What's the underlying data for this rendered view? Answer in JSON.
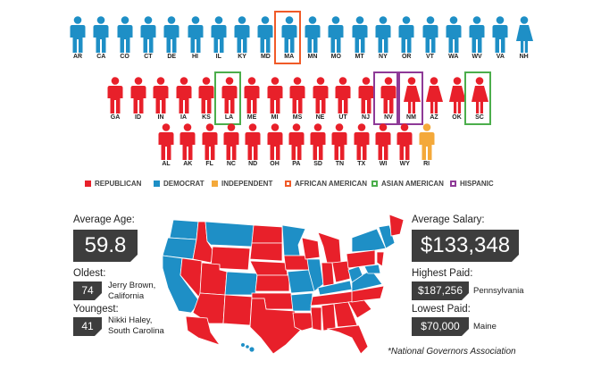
{
  "colors": {
    "republican": "#e8202a",
    "democrat": "#1e8fc6",
    "independent": "#f4a93a",
    "african_american": "#f05a28",
    "asian_american": "#4cae4c",
    "hispanic": "#8e3a97",
    "dark_box": "#3d3d3d"
  },
  "governor_rows": [
    [
      {
        "state": "AR",
        "party": "democrat",
        "gender": "male"
      },
      {
        "state": "CA",
        "party": "democrat",
        "gender": "male"
      },
      {
        "state": "CO",
        "party": "democrat",
        "gender": "male"
      },
      {
        "state": "CT",
        "party": "democrat",
        "gender": "male"
      },
      {
        "state": "DE",
        "party": "democrat",
        "gender": "male"
      },
      {
        "state": "HI",
        "party": "democrat",
        "gender": "male"
      },
      {
        "state": "IL",
        "party": "democrat",
        "gender": "male"
      },
      {
        "state": "KY",
        "party": "democrat",
        "gender": "male"
      },
      {
        "state": "MD",
        "party": "democrat",
        "gender": "male"
      },
      {
        "state": "MA",
        "party": "democrat",
        "gender": "male",
        "highlight": "african_american"
      },
      {
        "state": "MN",
        "party": "democrat",
        "gender": "male"
      },
      {
        "state": "MO",
        "party": "democrat",
        "gender": "male"
      },
      {
        "state": "MT",
        "party": "democrat",
        "gender": "male"
      },
      {
        "state": "NY",
        "party": "democrat",
        "gender": "male"
      },
      {
        "state": "OR",
        "party": "democrat",
        "gender": "male"
      },
      {
        "state": "VT",
        "party": "democrat",
        "gender": "male"
      },
      {
        "state": "WA",
        "party": "democrat",
        "gender": "male"
      },
      {
        "state": "WV",
        "party": "democrat",
        "gender": "male"
      },
      {
        "state": "VA",
        "party": "democrat",
        "gender": "male"
      },
      {
        "state": "NH",
        "party": "democrat",
        "gender": "female"
      }
    ],
    [
      {
        "state": "GA",
        "party": "republican",
        "gender": "male"
      },
      {
        "state": "ID",
        "party": "republican",
        "gender": "male"
      },
      {
        "state": "IN",
        "party": "republican",
        "gender": "male"
      },
      {
        "state": "IA",
        "party": "republican",
        "gender": "male"
      },
      {
        "state": "KS",
        "party": "republican",
        "gender": "male"
      },
      {
        "state": "LA",
        "party": "republican",
        "gender": "male",
        "highlight": "asian_american"
      },
      {
        "state": "ME",
        "party": "republican",
        "gender": "male"
      },
      {
        "state": "MI",
        "party": "republican",
        "gender": "male"
      },
      {
        "state": "MS",
        "party": "republican",
        "gender": "male"
      },
      {
        "state": "NE",
        "party": "republican",
        "gender": "male"
      },
      {
        "state": "UT",
        "party": "republican",
        "gender": "male"
      },
      {
        "state": "NJ",
        "party": "republican",
        "gender": "male"
      },
      {
        "state": "NV",
        "party": "republican",
        "gender": "male",
        "highlight": "hispanic"
      },
      {
        "state": "NM",
        "party": "republican",
        "gender": "female",
        "highlight": "hispanic"
      },
      {
        "state": "AZ",
        "party": "republican",
        "gender": "female"
      },
      {
        "state": "OK",
        "party": "republican",
        "gender": "female"
      },
      {
        "state": "SC",
        "party": "republican",
        "gender": "female",
        "highlight": "asian_american"
      }
    ],
    [
      {
        "state": "AL",
        "party": "republican",
        "gender": "male"
      },
      {
        "state": "AK",
        "party": "republican",
        "gender": "male"
      },
      {
        "state": "FL",
        "party": "republican",
        "gender": "male"
      },
      {
        "state": "NC",
        "party": "republican",
        "gender": "male"
      },
      {
        "state": "ND",
        "party": "republican",
        "gender": "male"
      },
      {
        "state": "OH",
        "party": "republican",
        "gender": "male"
      },
      {
        "state": "PA",
        "party": "republican",
        "gender": "male"
      },
      {
        "state": "SD",
        "party": "republican",
        "gender": "male"
      },
      {
        "state": "TN",
        "party": "republican",
        "gender": "male"
      },
      {
        "state": "TX",
        "party": "republican",
        "gender": "male"
      },
      {
        "state": "WI",
        "party": "republican",
        "gender": "male"
      },
      {
        "state": "WY",
        "party": "republican",
        "gender": "male"
      },
      {
        "state": "RI",
        "party": "independent",
        "gender": "male"
      }
    ]
  ],
  "legend": [
    {
      "label": "REPUBLICAN",
      "key": "republican",
      "style": "fill"
    },
    {
      "label": "DEMOCRAT",
      "key": "democrat",
      "style": "fill"
    },
    {
      "label": "INDEPENDENT",
      "key": "independent",
      "style": "fill"
    },
    {
      "label": "AFRICAN AMERICAN",
      "key": "african_american",
      "style": "outline"
    },
    {
      "label": "ASIAN AMERICAN",
      "key": "asian_american",
      "style": "outline"
    },
    {
      "label": "HISPANIC",
      "key": "hispanic",
      "style": "outline"
    }
  ],
  "stats": {
    "average_age_label": "Average Age:",
    "average_age_value": "59.8",
    "oldest_label": "Oldest:",
    "oldest_value": "74",
    "oldest_name": "Jerry Brown,\nCalifornia",
    "youngest_label": "Youngest:",
    "youngest_value": "41",
    "youngest_name": "Nikki Haley,\nSouth Carolina",
    "average_salary_label": "Average Salary:",
    "average_salary_value": "$133,348",
    "highest_paid_label": "Highest Paid:",
    "highest_paid_value": "$187,256",
    "highest_paid_state": "Pennsylvania",
    "lowest_paid_label": "Lowest Paid:",
    "lowest_paid_value": "$70,000",
    "lowest_paid_state": "Maine"
  },
  "source": "*National Governors Association"
}
